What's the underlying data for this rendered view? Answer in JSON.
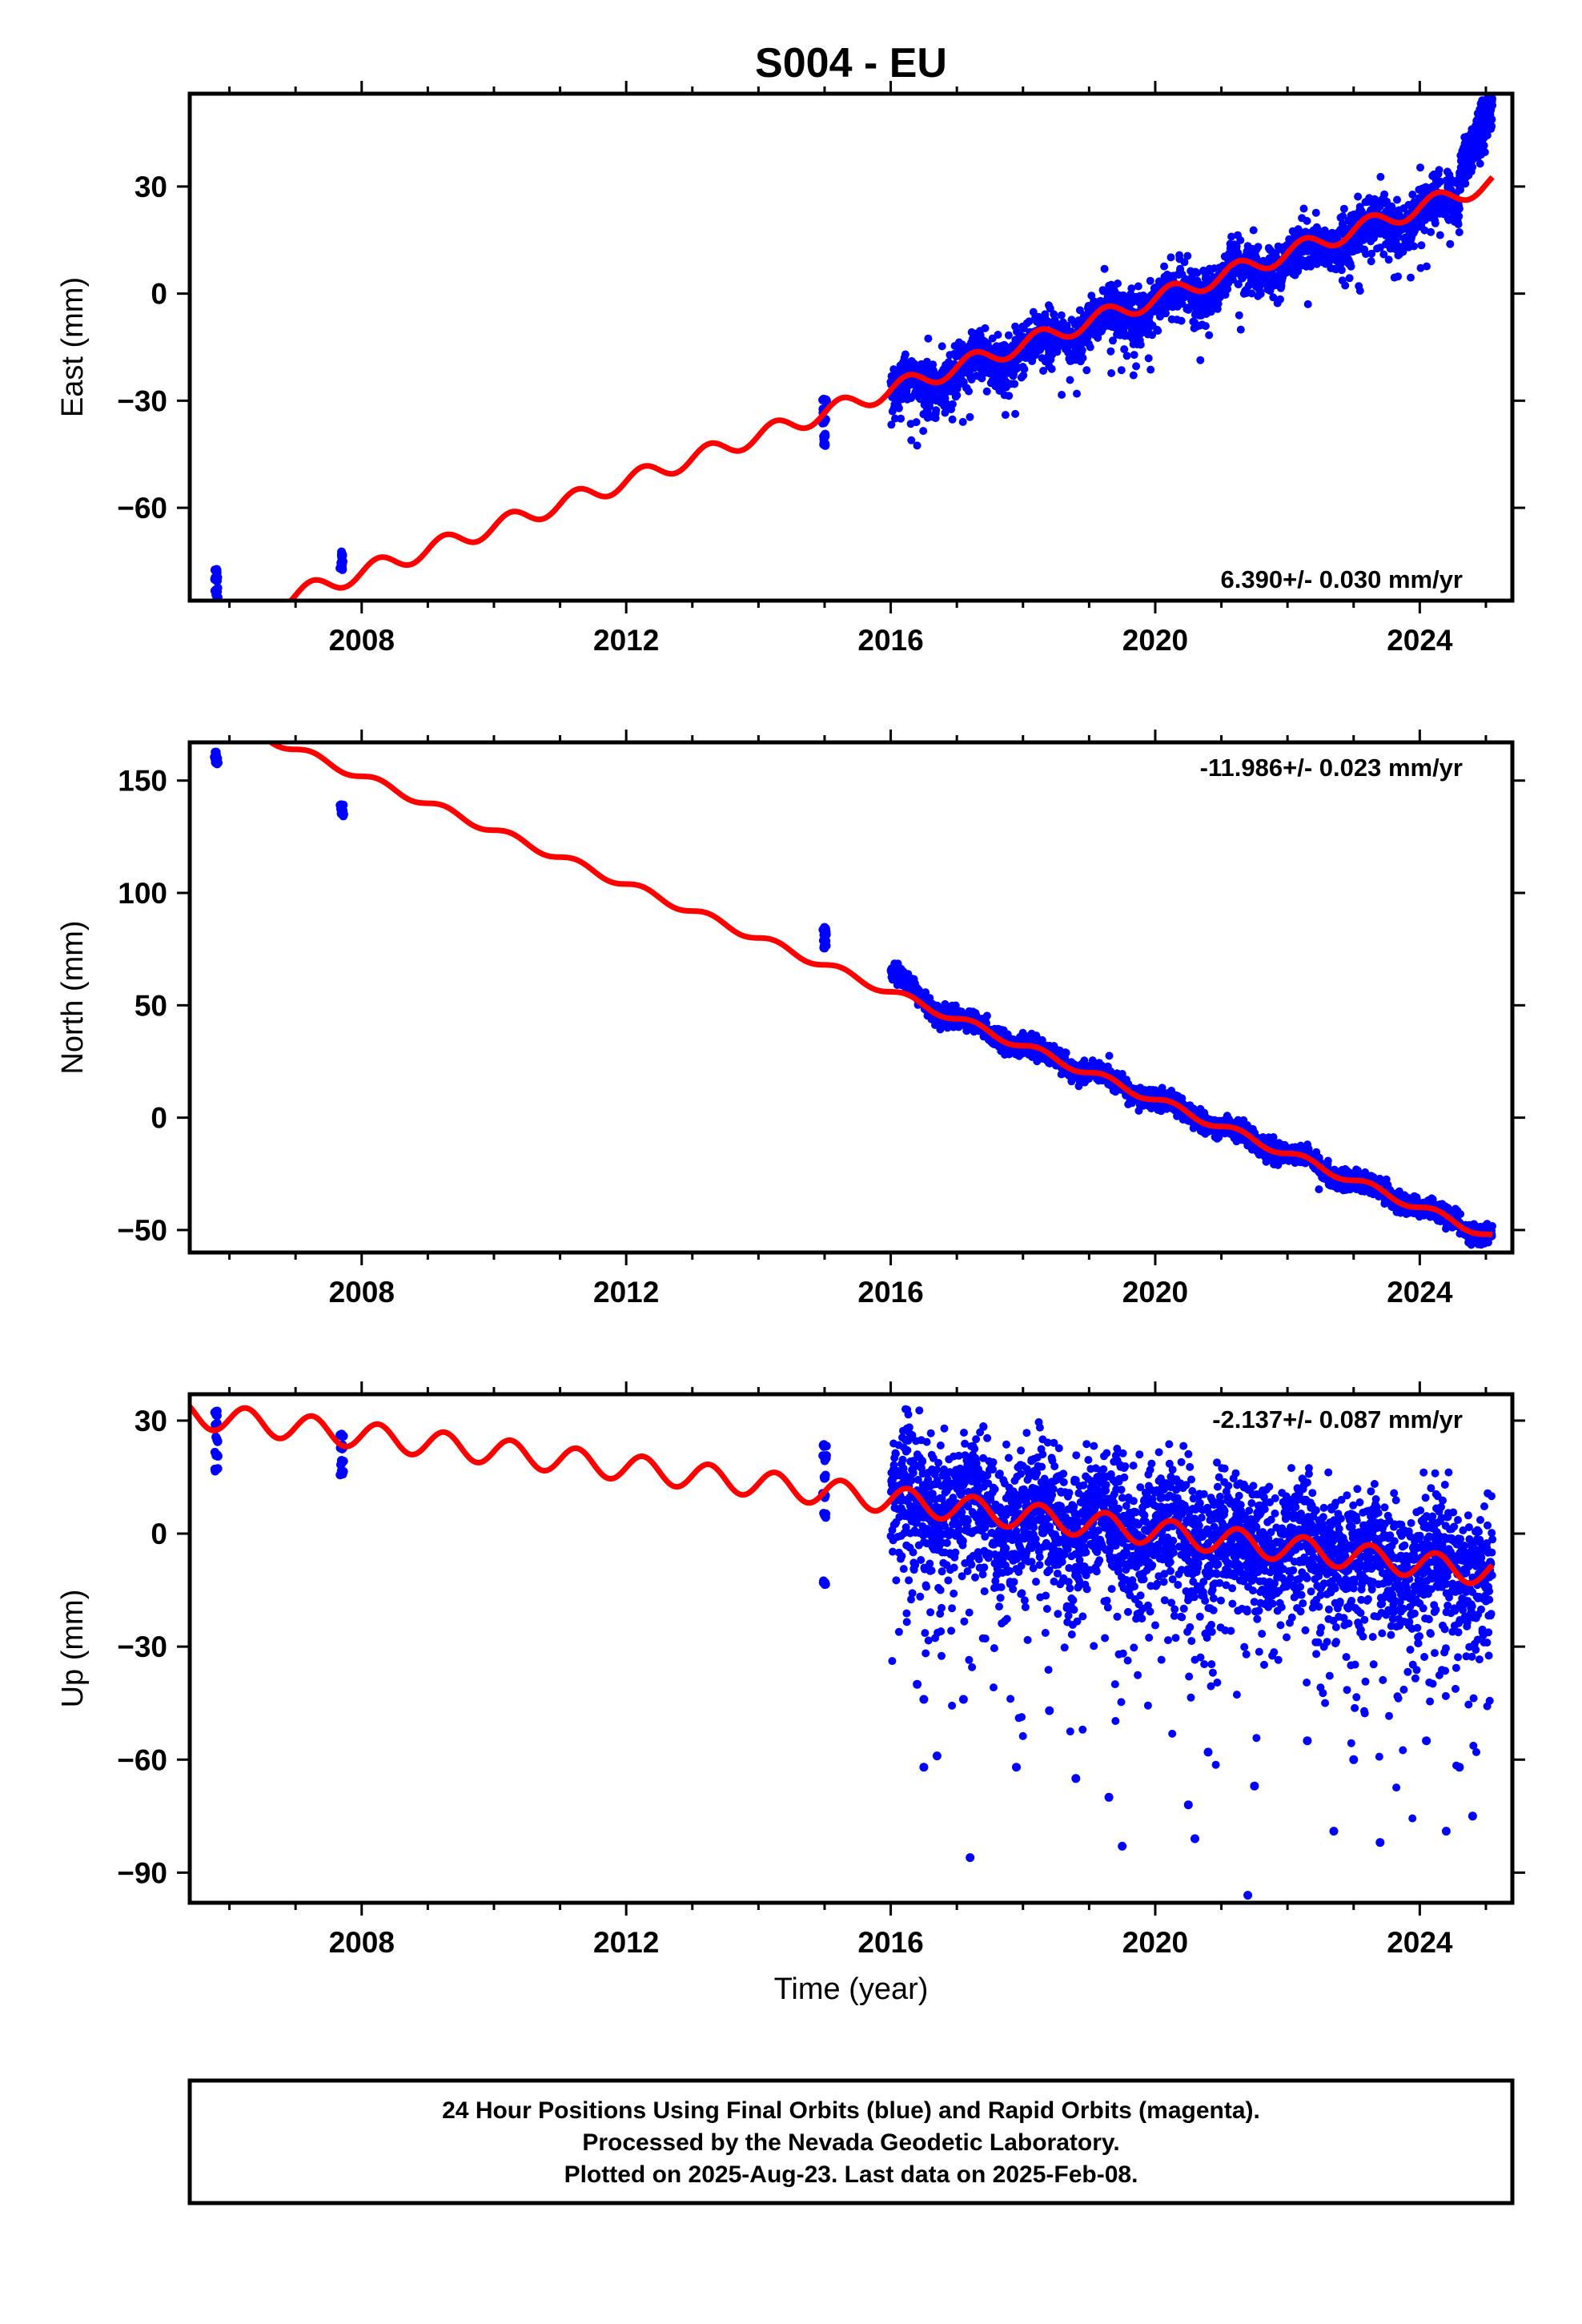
{
  "title": "S004 - EU",
  "colors": {
    "final_orbits": "#0000ff",
    "model": "#ff0000",
    "frame": "#000000"
  },
  "chart_data": [
    {
      "type": "scatter",
      "component": "East",
      "ylabel": "East (mm)",
      "xlabel": "",
      "xlim": [
        2005.4,
        2025.4
      ],
      "ylim": [
        -86,
        56
      ],
      "xticks": [
        2008,
        2012,
        2016,
        2020,
        2024
      ],
      "yticks": [
        -60,
        -30,
        0,
        30
      ],
      "ytick_labels": [
        "−60",
        "−30",
        "0",
        "30"
      ],
      "rate_label": "6.390+/- 0.030 mm/yr",
      "rate_position": "bottom-right",
      "trend": {
        "slope": 6.39,
        "intercept_year": 2016.0,
        "intercept_value": -27,
        "seasonal_amplitude": 2.5
      },
      "observations": [
        {
          "x": 2005.8,
          "y": -78
        },
        {
          "x": 2005.8,
          "y": -80
        },
        {
          "x": 2005.8,
          "y": -83
        },
        {
          "x": 2005.8,
          "y": -85
        },
        {
          "x": 2007.7,
          "y": -73
        },
        {
          "x": 2007.7,
          "y": -75
        },
        {
          "x": 2007.7,
          "y": -77
        },
        {
          "x": 2015.0,
          "y": -30
        },
        {
          "x": 2015.0,
          "y": -33
        },
        {
          "x": 2015.0,
          "y": -36
        },
        {
          "x": 2015.0,
          "y": -40
        },
        {
          "x": 2015.0,
          "y": -42
        }
      ],
      "dense_segment": {
        "start": 2016.0,
        "end": 2024.6,
        "scatter_sd": 3.5,
        "outlier_range": [
          -44,
          14
        ]
      },
      "anomaly_segment": {
        "start": 2024.6,
        "end": 2025.1,
        "y_range": [
          33,
          53
        ]
      }
    },
    {
      "type": "scatter",
      "component": "North",
      "ylabel": "North (mm)",
      "xlabel": "",
      "xlim": [
        2005.4,
        2025.4
      ],
      "ylim": [
        -60,
        167
      ],
      "xticks": [
        2008,
        2012,
        2016,
        2020,
        2024
      ],
      "yticks": [
        -50,
        0,
        50,
        100,
        150
      ],
      "ytick_labels": [
        "−50",
        "0",
        "50",
        "100",
        "150"
      ],
      "rate_label": "-11.986+/- 0.023 mm/yr",
      "rate_position": "top-right",
      "trend": {
        "slope": -11.986,
        "intercept_year": 2016.0,
        "intercept_value": 56,
        "seasonal_amplitude": 1.8
      },
      "observations": [
        {
          "x": 2005.8,
          "y": 158
        },
        {
          "x": 2005.8,
          "y": 160
        },
        {
          "x": 2005.8,
          "y": 162
        },
        {
          "x": 2007.7,
          "y": 135
        },
        {
          "x": 2007.7,
          "y": 137
        },
        {
          "x": 2007.7,
          "y": 139
        },
        {
          "x": 2015.0,
          "y": 76
        },
        {
          "x": 2015.0,
          "y": 79
        },
        {
          "x": 2015.0,
          "y": 82
        },
        {
          "x": 2015.0,
          "y": 84
        }
      ],
      "dense_segment": {
        "start": 2016.0,
        "end": 2025.1,
        "scatter_sd": 2.2,
        "early_offset": 10
      }
    },
    {
      "type": "scatter",
      "component": "Up",
      "ylabel": "Up (mm)",
      "xlabel": "Time (year)",
      "xlim": [
        2005.4,
        2025.4
      ],
      "ylim": [
        -98,
        37
      ],
      "xticks": [
        2008,
        2012,
        2016,
        2020,
        2024
      ],
      "yticks": [
        -90,
        -60,
        -30,
        0,
        30
      ],
      "ytick_labels": [
        "−90",
        "−60",
        "−30",
        "0",
        "30"
      ],
      "rate_label": "-2.137+/- 0.087 mm/yr",
      "rate_position": "top-right",
      "trend": {
        "slope": -2.137,
        "intercept_year": 2016.0,
        "intercept_value": 9,
        "seasonal_amplitude": 3.5
      },
      "observations": [
        {
          "x": 2005.8,
          "y": 17
        },
        {
          "x": 2005.8,
          "y": 21
        },
        {
          "x": 2005.8,
          "y": 25
        },
        {
          "x": 2005.8,
          "y": 29
        },
        {
          "x": 2005.8,
          "y": 32
        },
        {
          "x": 2007.7,
          "y": 16
        },
        {
          "x": 2007.7,
          "y": 19
        },
        {
          "x": 2007.7,
          "y": 23
        },
        {
          "x": 2007.7,
          "y": 26
        },
        {
          "x": 2015.0,
          "y": -13
        },
        {
          "x": 2015.0,
          "y": 5
        },
        {
          "x": 2015.0,
          "y": 10
        },
        {
          "x": 2015.0,
          "y": 15
        },
        {
          "x": 2015.0,
          "y": 20
        },
        {
          "x": 2015.0,
          "y": 23
        }
      ],
      "outliers": [
        {
          "x": 2017.2,
          "y": -86
        },
        {
          "x": 2019.5,
          "y": -83
        },
        {
          "x": 2020.6,
          "y": -81
        },
        {
          "x": 2021.4,
          "y": -96
        },
        {
          "x": 2023.4,
          "y": -82
        },
        {
          "x": 2024.4,
          "y": -79
        },
        {
          "x": 2024.8,
          "y": -75
        },
        {
          "x": 2022.7,
          "y": -79
        },
        {
          "x": 2016.5,
          "y": -62
        },
        {
          "x": 2016.7,
          "y": -59
        },
        {
          "x": 2017.9,
          "y": -62
        },
        {
          "x": 2018.8,
          "y": -65
        },
        {
          "x": 2019.3,
          "y": -70
        },
        {
          "x": 2020.5,
          "y": -72
        },
        {
          "x": 2021.5,
          "y": -67
        },
        {
          "x": 2023.0,
          "y": -60
        },
        {
          "x": 2024.6,
          "y": -62
        },
        {
          "x": 2016.4,
          "y": -40
        },
        {
          "x": 2016.5,
          "y": -44
        },
        {
          "x": 2017.1,
          "y": -44
        },
        {
          "x": 2018.4,
          "y": -47
        },
        {
          "x": 2020.8,
          "y": -58
        },
        {
          "x": 2022.3,
          "y": -55
        },
        {
          "x": 2024.1,
          "y": -55
        }
      ],
      "dense_segment": {
        "start": 2016.0,
        "end": 2025.1,
        "scatter_sd": 8.5,
        "max_value": 34
      }
    }
  ],
  "footer": {
    "lines": [
      "24 Hour Positions Using Final Orbits (blue) and Rapid Orbits (magenta).",
      "Processed by the Nevada Geodetic Laboratory.",
      "Plotted on 2025-Aug-23. Last data on 2025-Feb-08."
    ]
  }
}
